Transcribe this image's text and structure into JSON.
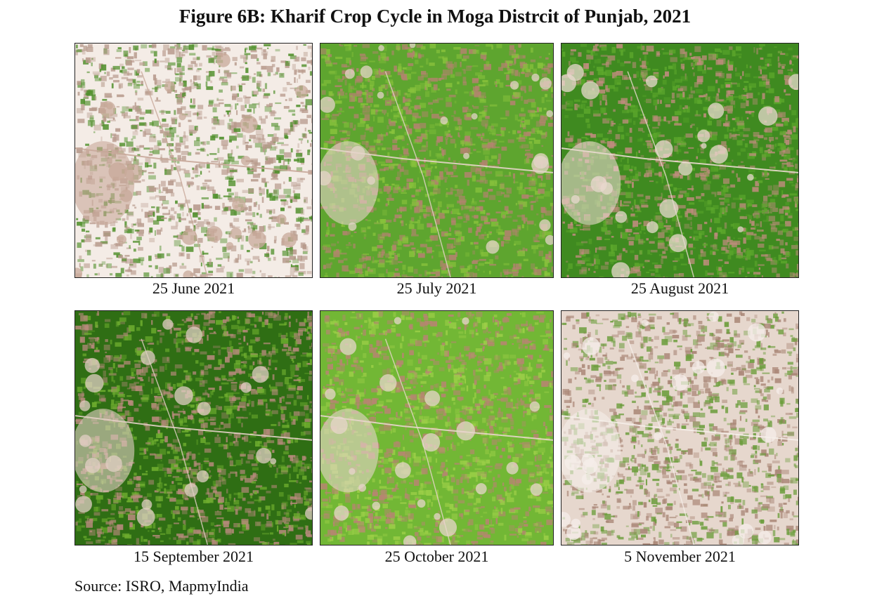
{
  "figure": {
    "title": "Figure 6B: Kharif Crop Cycle in Moga Distrcit of Punjab, 2021",
    "source": "Source:  ISRO, MapmyIndia"
  },
  "panels": [
    {
      "caption": "25 June 2021",
      "base": "#f4ece6",
      "patch": "#b79a8c",
      "field": "#4f8f2a",
      "settlement": "#c8a99a"
    },
    {
      "caption": "25 July 2021",
      "base": "#5ea52f",
      "patch": "#b3836f",
      "field": "#88c23c",
      "settlement": "#e6d4ca"
    },
    {
      "caption": "25 August 2021",
      "base": "#3f8a20",
      "patch": "#c08c7e",
      "field": "#5da82c",
      "settlement": "#ead9cf"
    },
    {
      "caption": "15 September 2021",
      "base": "#2f6e14",
      "patch": "#b78a7c",
      "field": "#6fae2f",
      "settlement": "#e2cfc4"
    },
    {
      "caption": "25 October 2021",
      "base": "#72b735",
      "patch": "#b78572",
      "field": "#9ccf48",
      "settlement": "#e8d6cc"
    },
    {
      "caption": "5 November 2021",
      "base": "#e6d7cd",
      "patch": "#a98676",
      "field": "#6a9c3a",
      "settlement": "#f5eee9"
    }
  ]
}
